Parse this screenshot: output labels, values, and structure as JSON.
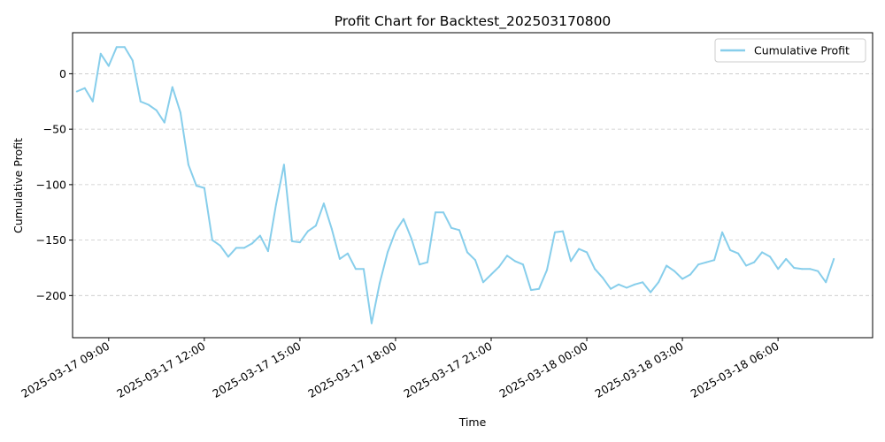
{
  "chart_data": {
    "type": "line",
    "title": "Profit Chart for Backtest_202503170800",
    "xlabel": "Time",
    "ylabel": "Cumulative Profit",
    "grid": "y-dashed",
    "legend_position": "top-right",
    "line_color": "#87ceeb",
    "ylim": [
      -238,
      37
    ],
    "xlim": [
      "2025-03-16T07:52",
      "2025-03-18T09:58"
    ],
    "y_ticks": [
      0,
      -50,
      -100,
      -150,
      -200
    ],
    "x_ticks": [
      {
        "t": "2025-03-17T09:00",
        "label": "2025-03-17 09:00"
      },
      {
        "t": "2025-03-17T12:00",
        "label": "2025-03-17 12:00"
      },
      {
        "t": "2025-03-17T15:00",
        "label": "2025-03-17 15:00"
      },
      {
        "t": "2025-03-17T18:00",
        "label": "2025-03-17 18:00"
      },
      {
        "t": "2025-03-17T21:00",
        "label": "2025-03-17 21:00"
      },
      {
        "t": "2025-03-18T00:00",
        "label": "2025-03-18 00:00"
      },
      {
        "t": "2025-03-18T03:00",
        "label": "2025-03-18 03:00"
      },
      {
        "t": "2025-03-18T06:00",
        "label": "2025-03-18 06:00"
      }
    ],
    "series": [
      {
        "name": "Cumulative Profit",
        "points": [
          [
            "2025-03-17T08:00",
            -16
          ],
          [
            "2025-03-17T08:15",
            -13
          ],
          [
            "2025-03-17T08:30",
            -25
          ],
          [
            "2025-03-17T08:45",
            18
          ],
          [
            "2025-03-17T09:00",
            7
          ],
          [
            "2025-03-17T09:15",
            24
          ],
          [
            "2025-03-17T09:30",
            24
          ],
          [
            "2025-03-17T09:45",
            12
          ],
          [
            "2025-03-17T10:00",
            -25
          ],
          [
            "2025-03-17T10:15",
            -28
          ],
          [
            "2025-03-17T10:30",
            -33
          ],
          [
            "2025-03-17T10:45",
            -44
          ],
          [
            "2025-03-17T11:00",
            -12
          ],
          [
            "2025-03-17T11:15",
            -35
          ],
          [
            "2025-03-17T11:30",
            -82
          ],
          [
            "2025-03-17T11:45",
            -101
          ],
          [
            "2025-03-17T12:00",
            -103
          ],
          [
            "2025-03-17T12:15",
            -150
          ],
          [
            "2025-03-17T12:30",
            -155
          ],
          [
            "2025-03-17T12:45",
            -165
          ],
          [
            "2025-03-17T13:00",
            -157
          ],
          [
            "2025-03-17T13:15",
            -157
          ],
          [
            "2025-03-17T13:30",
            -153
          ],
          [
            "2025-03-17T13:45",
            -146
          ],
          [
            "2025-03-17T14:00",
            -160
          ],
          [
            "2025-03-17T14:15",
            -118
          ],
          [
            "2025-03-17T14:30",
            -82
          ],
          [
            "2025-03-17T14:45",
            -151
          ],
          [
            "2025-03-17T15:00",
            -152
          ],
          [
            "2025-03-17T15:15",
            -142
          ],
          [
            "2025-03-17T15:30",
            -137
          ],
          [
            "2025-03-17T15:45",
            -117
          ],
          [
            "2025-03-17T16:00",
            -140
          ],
          [
            "2025-03-17T16:15",
            -167
          ],
          [
            "2025-03-17T16:30",
            -162
          ],
          [
            "2025-03-17T16:45",
            -176
          ],
          [
            "2025-03-17T17:00",
            -176
          ],
          [
            "2025-03-17T17:15",
            -225
          ],
          [
            "2025-03-17T17:30",
            -189
          ],
          [
            "2025-03-17T17:45",
            -161
          ],
          [
            "2025-03-17T18:00",
            -142
          ],
          [
            "2025-03-17T18:15",
            -131
          ],
          [
            "2025-03-17T18:30",
            -149
          ],
          [
            "2025-03-17T18:45",
            -172
          ],
          [
            "2025-03-17T19:00",
            -170
          ],
          [
            "2025-03-17T19:15",
            -125
          ],
          [
            "2025-03-17T19:30",
            -125
          ],
          [
            "2025-03-17T19:45",
            -139
          ],
          [
            "2025-03-17T20:00",
            -141
          ],
          [
            "2025-03-17T20:15",
            -161
          ],
          [
            "2025-03-17T20:30",
            -168
          ],
          [
            "2025-03-17T20:45",
            -188
          ],
          [
            "2025-03-17T21:00",
            -181
          ],
          [
            "2025-03-17T21:15",
            -174
          ],
          [
            "2025-03-17T21:30",
            -164
          ],
          [
            "2025-03-17T21:45",
            -169
          ],
          [
            "2025-03-17T22:00",
            -172
          ],
          [
            "2025-03-17T22:15",
            -195
          ],
          [
            "2025-03-17T22:30",
            -194
          ],
          [
            "2025-03-17T22:45",
            -177
          ],
          [
            "2025-03-17T23:00",
            -143
          ],
          [
            "2025-03-17T23:15",
            -142
          ],
          [
            "2025-03-17T23:30",
            -169
          ],
          [
            "2025-03-17T23:45",
            -158
          ],
          [
            "2025-03-18T00:00",
            -161
          ],
          [
            "2025-03-18T00:15",
            -176
          ],
          [
            "2025-03-18T00:30",
            -184
          ],
          [
            "2025-03-18T00:45",
            -194
          ],
          [
            "2025-03-18T01:00",
            -190
          ],
          [
            "2025-03-18T01:15",
            -193
          ],
          [
            "2025-03-18T01:30",
            -190
          ],
          [
            "2025-03-18T01:45",
            -188
          ],
          [
            "2025-03-18T02:00",
            -197
          ],
          [
            "2025-03-18T02:15",
            -188
          ],
          [
            "2025-03-18T02:30",
            -173
          ],
          [
            "2025-03-18T02:45",
            -178
          ],
          [
            "2025-03-18T03:00",
            -185
          ],
          [
            "2025-03-18T03:15",
            -181
          ],
          [
            "2025-03-18T03:30",
            -172
          ],
          [
            "2025-03-18T03:45",
            -170
          ],
          [
            "2025-03-18T04:00",
            -168
          ],
          [
            "2025-03-18T04:15",
            -143
          ],
          [
            "2025-03-18T04:30",
            -159
          ],
          [
            "2025-03-18T04:45",
            -162
          ],
          [
            "2025-03-18T05:00",
            -173
          ],
          [
            "2025-03-18T05:15",
            -170
          ],
          [
            "2025-03-18T05:30",
            -161
          ],
          [
            "2025-03-18T05:45",
            -165
          ],
          [
            "2025-03-18T06:00",
            -176
          ],
          [
            "2025-03-18T06:15",
            -167
          ],
          [
            "2025-03-18T06:30",
            -175
          ],
          [
            "2025-03-18T06:45",
            -176
          ],
          [
            "2025-03-18T07:00",
            -176
          ],
          [
            "2025-03-18T07:15",
            -178
          ],
          [
            "2025-03-18T07:30",
            -188
          ],
          [
            "2025-03-18T07:45",
            -167
          ]
        ]
      }
    ]
  }
}
